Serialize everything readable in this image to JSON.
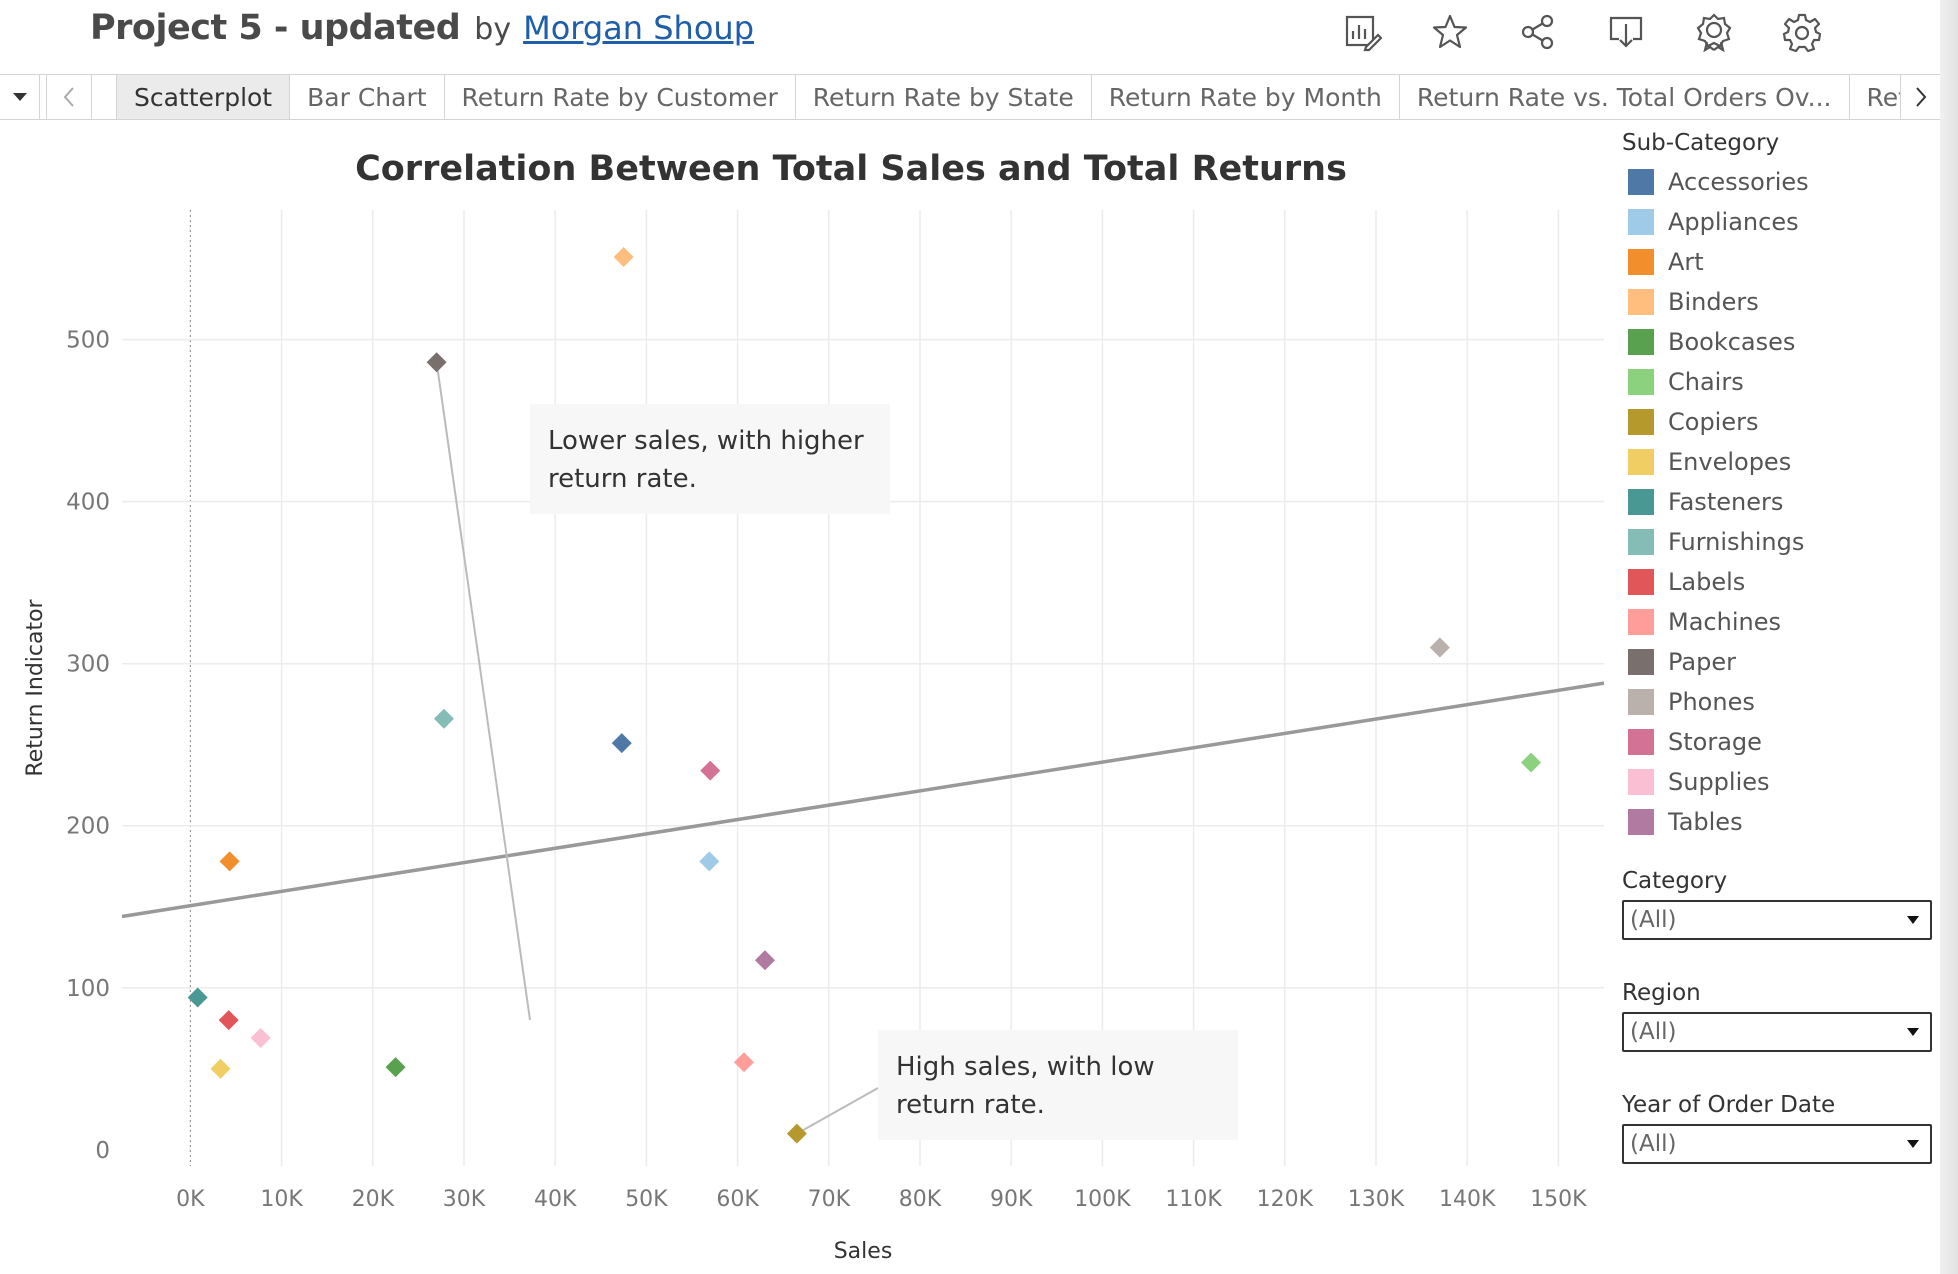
{
  "header": {
    "title": "Project 5 - updated",
    "by": "by",
    "author": "Morgan Shoup",
    "icons": [
      "metrics-icon",
      "favorite-star-icon",
      "share-icon",
      "download-icon",
      "award-icon",
      "settings-gear-icon"
    ]
  },
  "tabs": [
    {
      "label": "Scatterplot",
      "active": true
    },
    {
      "label": "Bar Chart"
    },
    {
      "label": "Return Rate by Customer"
    },
    {
      "label": "Return Rate by State"
    },
    {
      "label": "Return Rate by Month"
    },
    {
      "label": "Return Rate vs. Total Orders Ov..."
    },
    {
      "label": "Return I"
    }
  ],
  "annotations": {
    "upper": "Lower sales, with higher return rate.",
    "lower": "High sales, with low return rate."
  },
  "legend": {
    "title": "Sub-Category",
    "items": [
      {
        "label": "Accessories",
        "color": "#4e79a7"
      },
      {
        "label": "Appliances",
        "color": "#a0cbe8"
      },
      {
        "label": "Art",
        "color": "#f28e2b"
      },
      {
        "label": "Binders",
        "color": "#ffbe7d"
      },
      {
        "label": "Bookcases",
        "color": "#59a14f"
      },
      {
        "label": "Chairs",
        "color": "#8cd17d"
      },
      {
        "label": "Copiers",
        "color": "#b6992d"
      },
      {
        "label": "Envelopes",
        "color": "#f1ce63"
      },
      {
        "label": "Fasteners",
        "color": "#499894"
      },
      {
        "label": "Furnishings",
        "color": "#86bcb6"
      },
      {
        "label": "Labels",
        "color": "#e15759"
      },
      {
        "label": "Machines",
        "color": "#ff9d9a"
      },
      {
        "label": "Paper",
        "color": "#79706e"
      },
      {
        "label": "Phones",
        "color": "#bab0ac"
      },
      {
        "label": "Storage",
        "color": "#d37295"
      },
      {
        "label": "Supplies",
        "color": "#fabfd2"
      },
      {
        "label": "Tables",
        "color": "#b07aa1"
      }
    ]
  },
  "filters": [
    {
      "title": "Category",
      "value": "(All)"
    },
    {
      "title": "Region",
      "value": "(All)"
    },
    {
      "title": "Year of Order Date",
      "value": "(All)"
    }
  ],
  "chart_data": {
    "type": "scatter",
    "title": "Correlation Between Total Sales and Total Returns",
    "xlabel": "Sales",
    "ylabel": "Return Indicator",
    "xlim": [
      -7500,
      155000
    ],
    "ylim": [
      -10,
      580
    ],
    "xticks": [
      0,
      10000,
      20000,
      30000,
      40000,
      50000,
      60000,
      70000,
      80000,
      90000,
      100000,
      110000,
      120000,
      130000,
      140000,
      150000
    ],
    "xtick_labels": [
      "0K",
      "10K",
      "20K",
      "30K",
      "40K",
      "50K",
      "60K",
      "70K",
      "80K",
      "90K",
      "100K",
      "110K",
      "120K",
      "130K",
      "140K",
      "150K"
    ],
    "yticks": [
      0,
      100,
      200,
      300,
      400,
      500
    ],
    "ytick_labels": [
      "0",
      "100",
      "200",
      "300",
      "400",
      "500"
    ],
    "grid": true,
    "legend_position": "right",
    "trend_line": {
      "x": [
        -7500,
        155000
      ],
      "y": [
        144,
        288
      ]
    },
    "points": [
      {
        "category": "Binders",
        "x": 47500,
        "y": 551
      },
      {
        "category": "Paper",
        "x": 27000,
        "y": 486
      },
      {
        "category": "Phones",
        "x": 137000,
        "y": 310
      },
      {
        "category": "Furnishings",
        "x": 27800,
        "y": 266
      },
      {
        "category": "Accessories",
        "x": 47300,
        "y": 251
      },
      {
        "category": "Chairs",
        "x": 147000,
        "y": 239
      },
      {
        "category": "Storage",
        "x": 57000,
        "y": 234
      },
      {
        "category": "Art",
        "x": 4300,
        "y": 178
      },
      {
        "category": "Appliances",
        "x": 56900,
        "y": 178
      },
      {
        "category": "Tables",
        "x": 63000,
        "y": 117
      },
      {
        "category": "Fasteners",
        "x": 800,
        "y": 94
      },
      {
        "category": "Labels",
        "x": 4200,
        "y": 80
      },
      {
        "category": "Supplies",
        "x": 7700,
        "y": 69
      },
      {
        "category": "Machines",
        "x": 60700,
        "y": 54
      },
      {
        "category": "Envelopes",
        "x": 3300,
        "y": 50
      },
      {
        "category": "Bookcases",
        "x": 22500,
        "y": 51
      },
      {
        "category": "Copiers",
        "x": 66500,
        "y": 10
      }
    ]
  }
}
